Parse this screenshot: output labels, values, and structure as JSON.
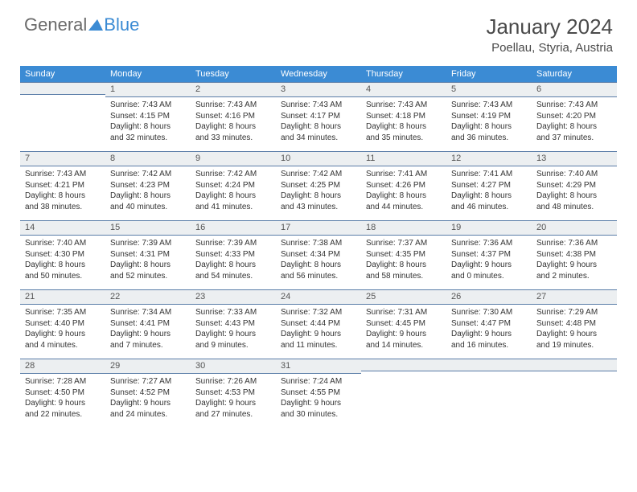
{
  "logo": {
    "part1": "General",
    "part2": "Blue"
  },
  "title": "January 2024",
  "location": "Poellau, Styria, Austria",
  "colors": {
    "header_bg": "#3b8bd4",
    "header_text": "#ffffff",
    "daynum_bg": "#eceff1",
    "daynum_border": "#5a7da8",
    "body_text": "#333333",
    "page_bg": "#ffffff",
    "logo_gray": "#6a6a6a",
    "logo_blue": "#3b8bd4"
  },
  "day_headers": [
    "Sunday",
    "Monday",
    "Tuesday",
    "Wednesday",
    "Thursday",
    "Friday",
    "Saturday"
  ],
  "weeks": [
    [
      {
        "n": "",
        "sunrise": "",
        "sunset": "",
        "daylight1": "",
        "daylight2": ""
      },
      {
        "n": "1",
        "sunrise": "Sunrise: 7:43 AM",
        "sunset": "Sunset: 4:15 PM",
        "daylight1": "Daylight: 8 hours",
        "daylight2": "and 32 minutes."
      },
      {
        "n": "2",
        "sunrise": "Sunrise: 7:43 AM",
        "sunset": "Sunset: 4:16 PM",
        "daylight1": "Daylight: 8 hours",
        "daylight2": "and 33 minutes."
      },
      {
        "n": "3",
        "sunrise": "Sunrise: 7:43 AM",
        "sunset": "Sunset: 4:17 PM",
        "daylight1": "Daylight: 8 hours",
        "daylight2": "and 34 minutes."
      },
      {
        "n": "4",
        "sunrise": "Sunrise: 7:43 AM",
        "sunset": "Sunset: 4:18 PM",
        "daylight1": "Daylight: 8 hours",
        "daylight2": "and 35 minutes."
      },
      {
        "n": "5",
        "sunrise": "Sunrise: 7:43 AM",
        "sunset": "Sunset: 4:19 PM",
        "daylight1": "Daylight: 8 hours",
        "daylight2": "and 36 minutes."
      },
      {
        "n": "6",
        "sunrise": "Sunrise: 7:43 AM",
        "sunset": "Sunset: 4:20 PM",
        "daylight1": "Daylight: 8 hours",
        "daylight2": "and 37 minutes."
      }
    ],
    [
      {
        "n": "7",
        "sunrise": "Sunrise: 7:43 AM",
        "sunset": "Sunset: 4:21 PM",
        "daylight1": "Daylight: 8 hours",
        "daylight2": "and 38 minutes."
      },
      {
        "n": "8",
        "sunrise": "Sunrise: 7:42 AM",
        "sunset": "Sunset: 4:23 PM",
        "daylight1": "Daylight: 8 hours",
        "daylight2": "and 40 minutes."
      },
      {
        "n": "9",
        "sunrise": "Sunrise: 7:42 AM",
        "sunset": "Sunset: 4:24 PM",
        "daylight1": "Daylight: 8 hours",
        "daylight2": "and 41 minutes."
      },
      {
        "n": "10",
        "sunrise": "Sunrise: 7:42 AM",
        "sunset": "Sunset: 4:25 PM",
        "daylight1": "Daylight: 8 hours",
        "daylight2": "and 43 minutes."
      },
      {
        "n": "11",
        "sunrise": "Sunrise: 7:41 AM",
        "sunset": "Sunset: 4:26 PM",
        "daylight1": "Daylight: 8 hours",
        "daylight2": "and 44 minutes."
      },
      {
        "n": "12",
        "sunrise": "Sunrise: 7:41 AM",
        "sunset": "Sunset: 4:27 PM",
        "daylight1": "Daylight: 8 hours",
        "daylight2": "and 46 minutes."
      },
      {
        "n": "13",
        "sunrise": "Sunrise: 7:40 AM",
        "sunset": "Sunset: 4:29 PM",
        "daylight1": "Daylight: 8 hours",
        "daylight2": "and 48 minutes."
      }
    ],
    [
      {
        "n": "14",
        "sunrise": "Sunrise: 7:40 AM",
        "sunset": "Sunset: 4:30 PM",
        "daylight1": "Daylight: 8 hours",
        "daylight2": "and 50 minutes."
      },
      {
        "n": "15",
        "sunrise": "Sunrise: 7:39 AM",
        "sunset": "Sunset: 4:31 PM",
        "daylight1": "Daylight: 8 hours",
        "daylight2": "and 52 minutes."
      },
      {
        "n": "16",
        "sunrise": "Sunrise: 7:39 AM",
        "sunset": "Sunset: 4:33 PM",
        "daylight1": "Daylight: 8 hours",
        "daylight2": "and 54 minutes."
      },
      {
        "n": "17",
        "sunrise": "Sunrise: 7:38 AM",
        "sunset": "Sunset: 4:34 PM",
        "daylight1": "Daylight: 8 hours",
        "daylight2": "and 56 minutes."
      },
      {
        "n": "18",
        "sunrise": "Sunrise: 7:37 AM",
        "sunset": "Sunset: 4:35 PM",
        "daylight1": "Daylight: 8 hours",
        "daylight2": "and 58 minutes."
      },
      {
        "n": "19",
        "sunrise": "Sunrise: 7:36 AM",
        "sunset": "Sunset: 4:37 PM",
        "daylight1": "Daylight: 9 hours",
        "daylight2": "and 0 minutes."
      },
      {
        "n": "20",
        "sunrise": "Sunrise: 7:36 AM",
        "sunset": "Sunset: 4:38 PM",
        "daylight1": "Daylight: 9 hours",
        "daylight2": "and 2 minutes."
      }
    ],
    [
      {
        "n": "21",
        "sunrise": "Sunrise: 7:35 AM",
        "sunset": "Sunset: 4:40 PM",
        "daylight1": "Daylight: 9 hours",
        "daylight2": "and 4 minutes."
      },
      {
        "n": "22",
        "sunrise": "Sunrise: 7:34 AM",
        "sunset": "Sunset: 4:41 PM",
        "daylight1": "Daylight: 9 hours",
        "daylight2": "and 7 minutes."
      },
      {
        "n": "23",
        "sunrise": "Sunrise: 7:33 AM",
        "sunset": "Sunset: 4:43 PM",
        "daylight1": "Daylight: 9 hours",
        "daylight2": "and 9 minutes."
      },
      {
        "n": "24",
        "sunrise": "Sunrise: 7:32 AM",
        "sunset": "Sunset: 4:44 PM",
        "daylight1": "Daylight: 9 hours",
        "daylight2": "and 11 minutes."
      },
      {
        "n": "25",
        "sunrise": "Sunrise: 7:31 AM",
        "sunset": "Sunset: 4:45 PM",
        "daylight1": "Daylight: 9 hours",
        "daylight2": "and 14 minutes."
      },
      {
        "n": "26",
        "sunrise": "Sunrise: 7:30 AM",
        "sunset": "Sunset: 4:47 PM",
        "daylight1": "Daylight: 9 hours",
        "daylight2": "and 16 minutes."
      },
      {
        "n": "27",
        "sunrise": "Sunrise: 7:29 AM",
        "sunset": "Sunset: 4:48 PM",
        "daylight1": "Daylight: 9 hours",
        "daylight2": "and 19 minutes."
      }
    ],
    [
      {
        "n": "28",
        "sunrise": "Sunrise: 7:28 AM",
        "sunset": "Sunset: 4:50 PM",
        "daylight1": "Daylight: 9 hours",
        "daylight2": "and 22 minutes."
      },
      {
        "n": "29",
        "sunrise": "Sunrise: 7:27 AM",
        "sunset": "Sunset: 4:52 PM",
        "daylight1": "Daylight: 9 hours",
        "daylight2": "and 24 minutes."
      },
      {
        "n": "30",
        "sunrise": "Sunrise: 7:26 AM",
        "sunset": "Sunset: 4:53 PM",
        "daylight1": "Daylight: 9 hours",
        "daylight2": "and 27 minutes."
      },
      {
        "n": "31",
        "sunrise": "Sunrise: 7:24 AM",
        "sunset": "Sunset: 4:55 PM",
        "daylight1": "Daylight: 9 hours",
        "daylight2": "and 30 minutes."
      },
      {
        "n": "",
        "sunrise": "",
        "sunset": "",
        "daylight1": "",
        "daylight2": ""
      },
      {
        "n": "",
        "sunrise": "",
        "sunset": "",
        "daylight1": "",
        "daylight2": ""
      },
      {
        "n": "",
        "sunrise": "",
        "sunset": "",
        "daylight1": "",
        "daylight2": ""
      }
    ]
  ]
}
